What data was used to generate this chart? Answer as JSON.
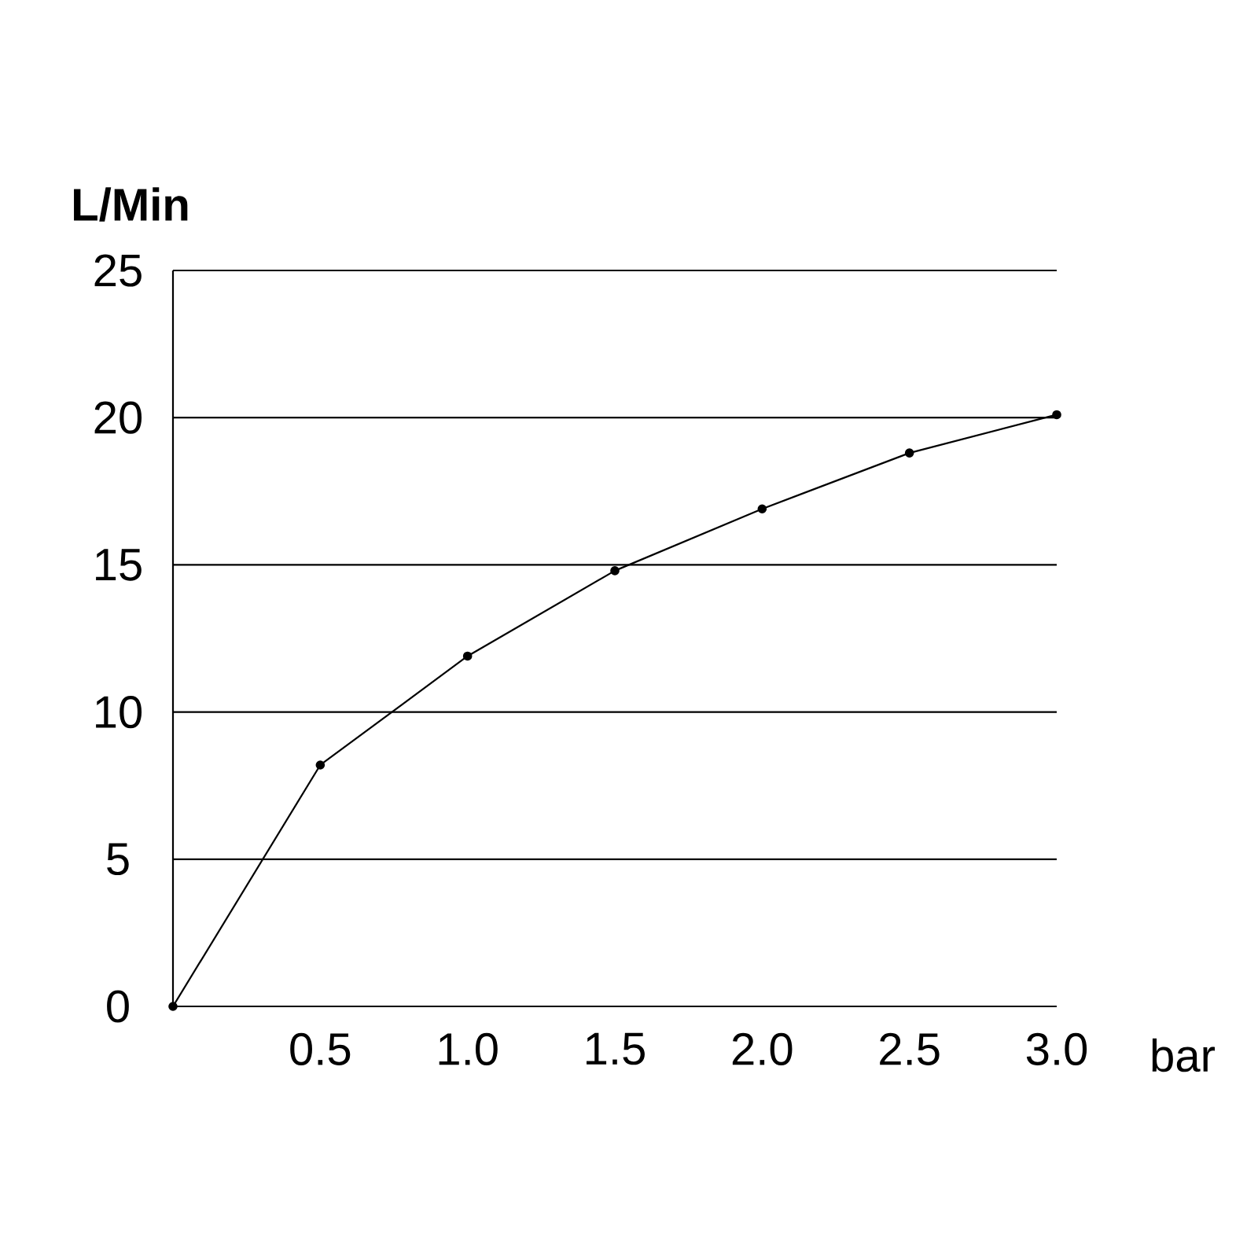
{
  "chart_data": {
    "type": "line",
    "xlabel": "bar",
    "ylabel": "L/Min",
    "x": [
      0,
      0.5,
      1.0,
      1.5,
      2.0,
      2.5,
      3.0
    ],
    "series": [
      {
        "color": "#000000",
        "values": [
          0,
          8.2,
          11.9,
          14.8,
          16.9,
          18.8,
          20.1
        ]
      }
    ],
    "xlim": [
      0,
      3.0
    ],
    "ylim": [
      0,
      25
    ],
    "xticks": [
      0.5,
      {
        "value": 1.0,
        "label": "1.0"
      },
      1.5,
      {
        "value": 2.0,
        "label": "2.0"
      },
      2.5,
      {
        "value": 3.0,
        "label": "3.0"
      }
    ],
    "yticks": [
      0,
      5,
      10,
      15,
      20,
      25
    ],
    "grid": "y",
    "marker": "circle",
    "line_style": "solid"
  }
}
